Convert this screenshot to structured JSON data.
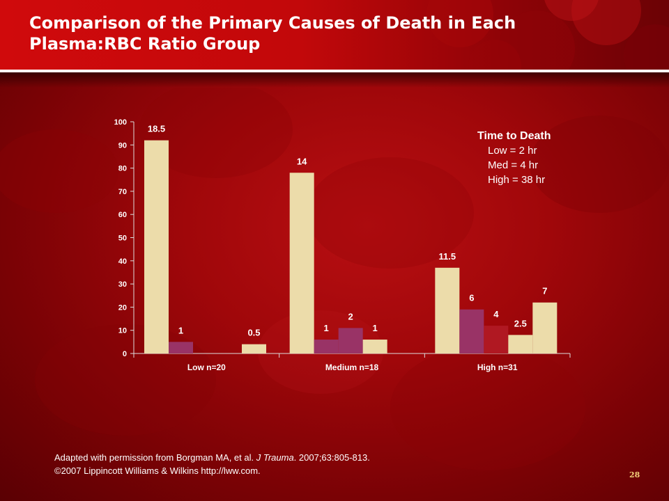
{
  "slide": {
    "title": "Comparison of the Primary Causes of Death in Each Plasma:RBC Ratio Group",
    "page_number": "28"
  },
  "legend_box": {
    "title": "Time to Death",
    "lines": [
      "Low = 2 hr",
      "Med = 4 hr",
      "High = 38 hr"
    ]
  },
  "citation": {
    "line1_prefix": "Adapted with permission from Borgman MA, et al. ",
    "line1_journal": "J Trauma",
    "line1_suffix": ". 2007;63:805-813.",
    "line2": "©2007 Lippincott Williams & Wilkins http://lww.com."
  },
  "colors": {
    "cream": "#ecdcaa",
    "plum": "#993366",
    "maroon": "#b01822",
    "axis": "#dddddd"
  },
  "chart_data": {
    "type": "bar",
    "ylim": [
      0,
      100
    ],
    "yticks": [
      0,
      10,
      20,
      30,
      40,
      50,
      60,
      70,
      80,
      90,
      100
    ],
    "categories": [
      "Low n=20",
      "Medium n=18",
      "High n=31"
    ],
    "slots_per_group": 5,
    "groups": [
      {
        "category": "Low n=20",
        "bars": [
          {
            "slot": 0,
            "value": 92,
            "label": "18.5",
            "color": "#ecdcaa"
          },
          {
            "slot": 1,
            "value": 5,
            "label": "1",
            "color": "#993366"
          },
          {
            "slot": 4,
            "value": 4,
            "label": "0.5",
            "color": "#ecdcaa"
          }
        ]
      },
      {
        "category": "Medium n=18",
        "bars": [
          {
            "slot": 0,
            "value": 78,
            "label": "14",
            "color": "#ecdcaa"
          },
          {
            "slot": 1,
            "value": 6,
            "label": "1",
            "color": "#993366"
          },
          {
            "slot": 2,
            "value": 11,
            "label": "2",
            "color": "#993366"
          },
          {
            "slot": 3,
            "value": 6,
            "label": "1",
            "color": "#ecdcaa"
          }
        ]
      },
      {
        "category": "High n=31",
        "bars": [
          {
            "slot": 0,
            "value": 37,
            "label": "11.5",
            "color": "#ecdcaa"
          },
          {
            "slot": 1,
            "value": 19,
            "label": "6",
            "color": "#993366"
          },
          {
            "slot": 2,
            "value": 12,
            "label": "4",
            "color": "#b01822"
          },
          {
            "slot": 3,
            "value": 8,
            "label": "2.5",
            "color": "#ecdcaa"
          },
          {
            "slot": 4,
            "value": 22,
            "label": "7",
            "color": "#ecdcaa"
          }
        ]
      }
    ]
  }
}
